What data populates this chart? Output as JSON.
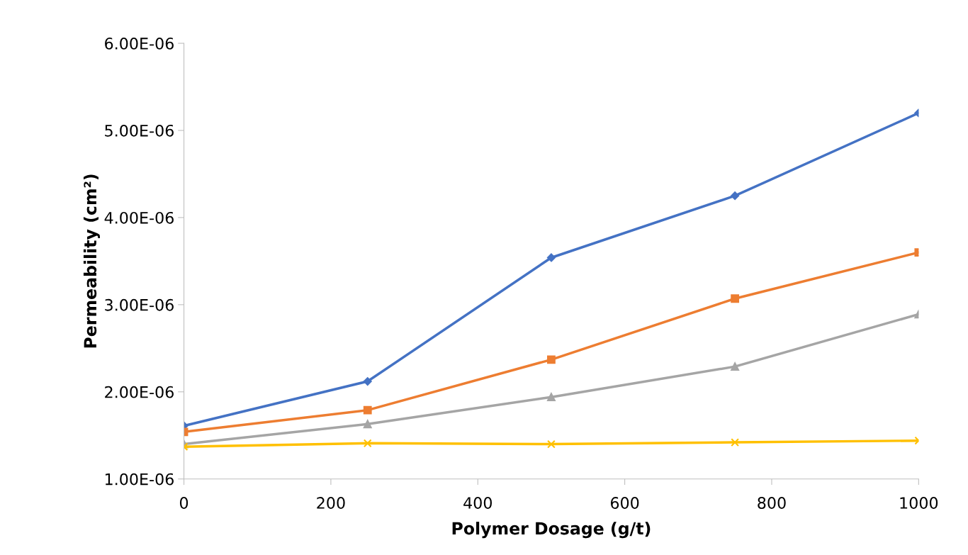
{
  "chart_data": {
    "type": "line",
    "xlabel": "Polymer Dosage (g/t)",
    "ylabel": "Permeability (cm²)",
    "x": [
      0,
      250,
      500,
      750,
      1000
    ],
    "series": [
      {
        "color": "#4472c4",
        "marker": "diamond",
        "values": [
          1.61e-06,
          2.12e-06,
          3.54e-06,
          4.25e-06,
          5.2e-06
        ]
      },
      {
        "color": "#ed7d31",
        "marker": "square",
        "values": [
          1.54e-06,
          1.79e-06,
          2.37e-06,
          3.07e-06,
          3.6e-06
        ]
      },
      {
        "color": "#a5a5a5",
        "marker": "triangle",
        "values": [
          1.4e-06,
          1.63e-06,
          1.94e-06,
          2.29e-06,
          2.89e-06
        ]
      },
      {
        "color": "#ffc000",
        "marker": "cross",
        "values": [
          1.37e-06,
          1.41e-06,
          1.4e-06,
          1.42e-06,
          1.44e-06
        ]
      }
    ],
    "xlim": [
      0,
      1000
    ],
    "xticks": [
      0,
      200,
      400,
      600,
      800,
      1000
    ],
    "ylim": [
      1e-06,
      6e-06
    ],
    "yticks": [
      {
        "value": 1e-06,
        "label": "1.00E-06"
      },
      {
        "value": 2e-06,
        "label": "2.00E-06"
      },
      {
        "value": 3e-06,
        "label": "3.00E-06"
      },
      {
        "value": 4e-06,
        "label": "4.00E-06"
      },
      {
        "value": 5e-06,
        "label": "5.00E-06"
      },
      {
        "value": 6e-06,
        "label": "6.00E-06"
      }
    ],
    "grid": false,
    "line_style": "solid"
  }
}
